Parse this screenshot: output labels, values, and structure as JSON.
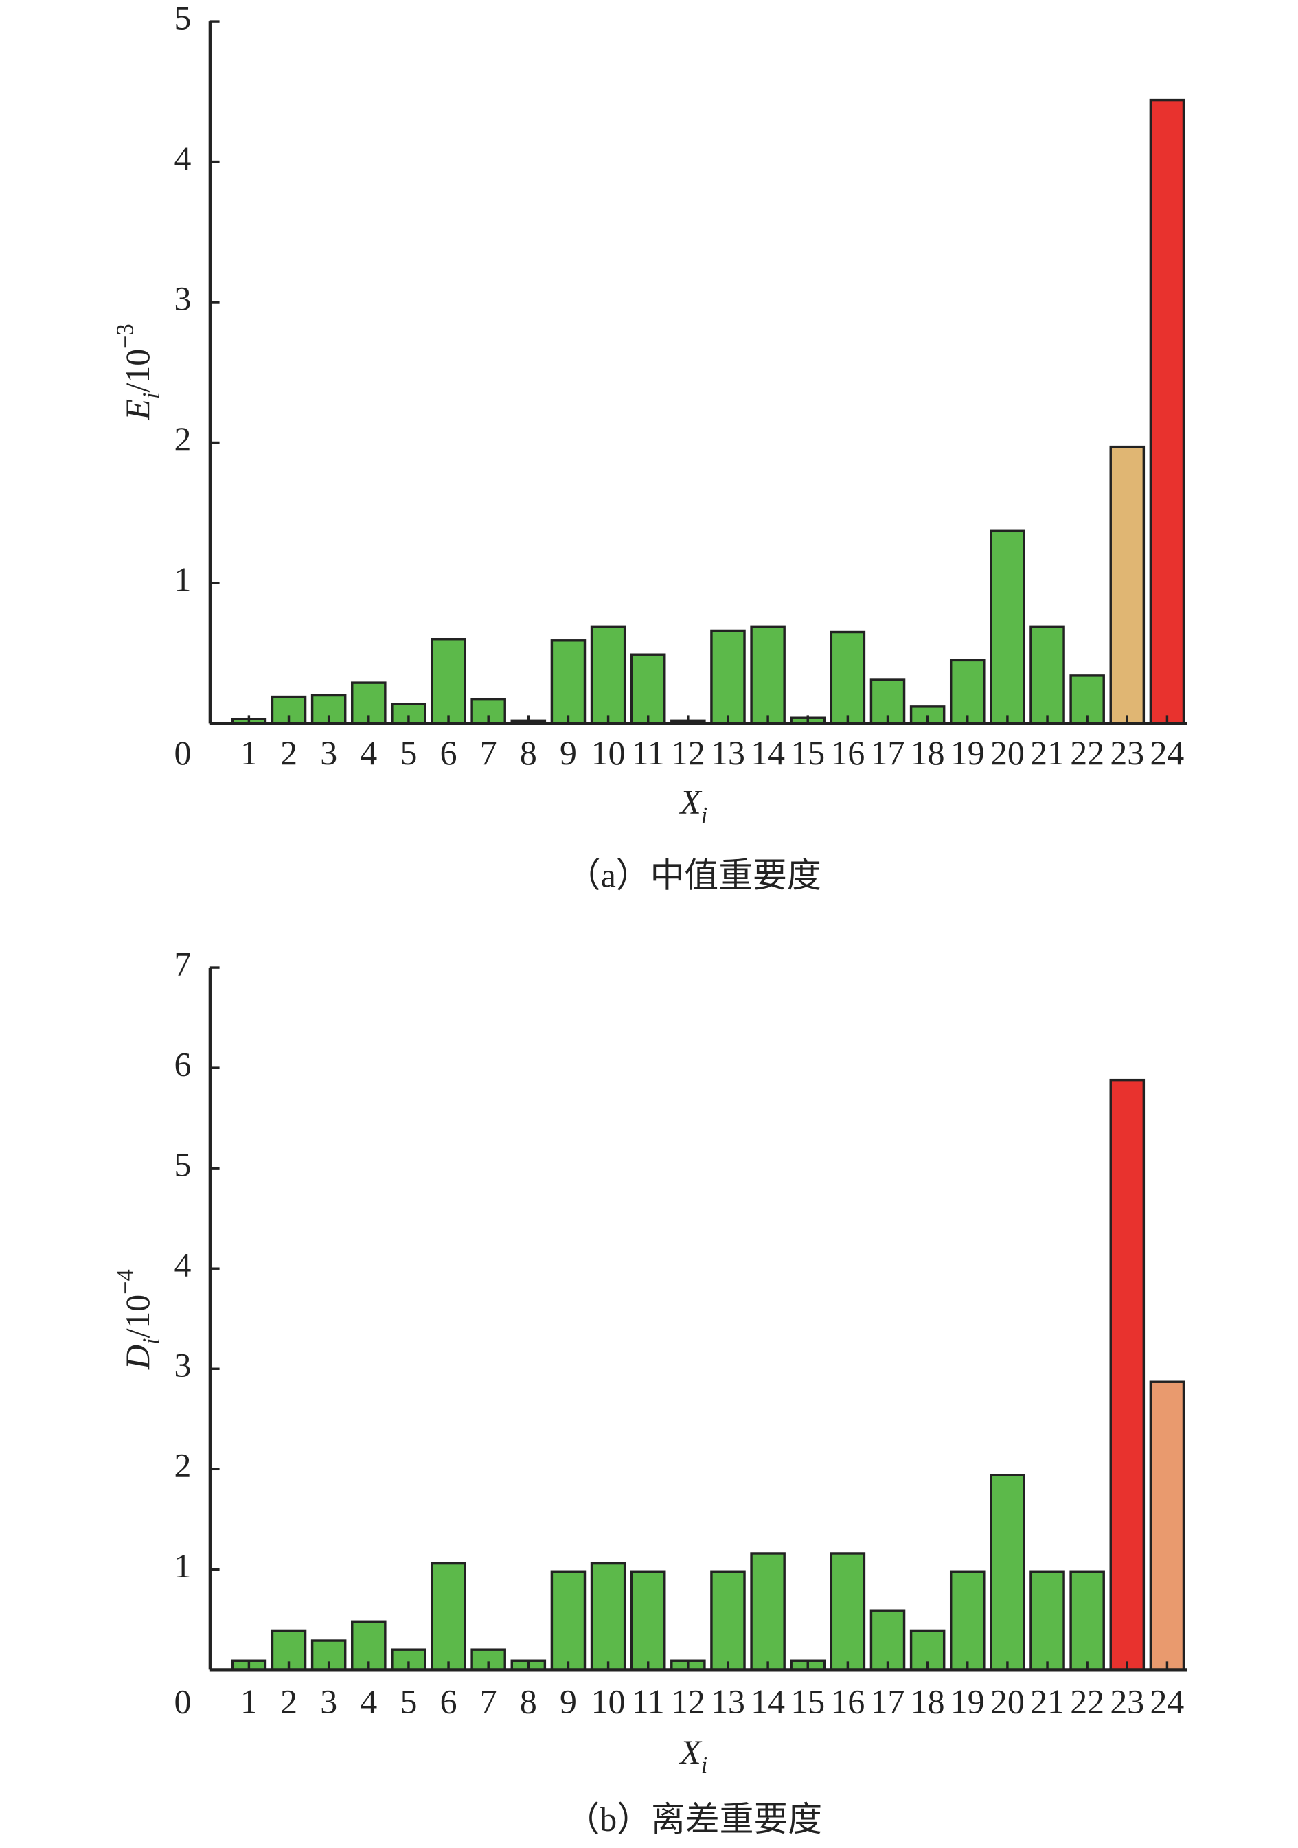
{
  "chart_data": [
    {
      "type": "bar",
      "title": "（a）中值重要度",
      "xlabel": {
        "symbol": "X",
        "subscript": "i"
      },
      "ylabel": {
        "symbol": "E",
        "subscript": "i",
        "unit": "/10",
        "exponent": "−3"
      },
      "categories": [
        "1",
        "2",
        "3",
        "4",
        "5",
        "6",
        "7",
        "8",
        "9",
        "10",
        "11",
        "12",
        "13",
        "14",
        "15",
        "16",
        "17",
        "18",
        "19",
        "20",
        "21",
        "22",
        "23",
        "24"
      ],
      "values": [
        0.03,
        0.19,
        0.2,
        0.29,
        0.14,
        0.6,
        0.17,
        0.02,
        0.59,
        0.69,
        0.49,
        0.02,
        0.66,
        0.69,
        0.04,
        0.65,
        0.31,
        0.12,
        0.45,
        1.37,
        0.69,
        0.34,
        1.97,
        4.44
      ],
      "colors": [
        "#5cb94a",
        "#5cb94a",
        "#5cb94a",
        "#5cb94a",
        "#5cb94a",
        "#5cb94a",
        "#5cb94a",
        "#5cb94a",
        "#5cb94a",
        "#5cb94a",
        "#5cb94a",
        "#5cb94a",
        "#5cb94a",
        "#5cb94a",
        "#5cb94a",
        "#5cb94a",
        "#5cb94a",
        "#5cb94a",
        "#5cb94a",
        "#5cb94a",
        "#5cb94a",
        "#5cb94a",
        "#e0b673",
        "#e8322e"
      ],
      "ylim": [
        0,
        5
      ],
      "yticks": [
        0,
        1,
        2,
        3,
        4,
        5
      ]
    },
    {
      "type": "bar",
      "title": "（b）离差重要度",
      "xlabel": {
        "symbol": "X",
        "subscript": "i"
      },
      "ylabel": {
        "symbol": "D",
        "subscript": "i",
        "unit": "/10",
        "exponent": "−4"
      },
      "categories": [
        "1",
        "2",
        "3",
        "4",
        "5",
        "6",
        "7",
        "8",
        "9",
        "10",
        "11",
        "12",
        "13",
        "14",
        "15",
        "16",
        "17",
        "18",
        "19",
        "20",
        "21",
        "22",
        "23",
        "24"
      ],
      "values": [
        0.09,
        0.39,
        0.29,
        0.48,
        0.2,
        1.06,
        0.2,
        0.09,
        0.98,
        1.06,
        0.98,
        0.09,
        0.98,
        1.16,
        0.09,
        1.16,
        0.59,
        0.39,
        0.98,
        1.94,
        0.98,
        0.98,
        5.88,
        2.87
      ],
      "colors": [
        "#5cb94a",
        "#5cb94a",
        "#5cb94a",
        "#5cb94a",
        "#5cb94a",
        "#5cb94a",
        "#5cb94a",
        "#5cb94a",
        "#5cb94a",
        "#5cb94a",
        "#5cb94a",
        "#5cb94a",
        "#5cb94a",
        "#5cb94a",
        "#5cb94a",
        "#5cb94a",
        "#5cb94a",
        "#5cb94a",
        "#5cb94a",
        "#5cb94a",
        "#5cb94a",
        "#5cb94a",
        "#e8322e",
        "#e99a6e"
      ],
      "ylim": [
        0,
        7
      ],
      "yticks": [
        0,
        1,
        2,
        3,
        4,
        5,
        6,
        7
      ]
    }
  ]
}
